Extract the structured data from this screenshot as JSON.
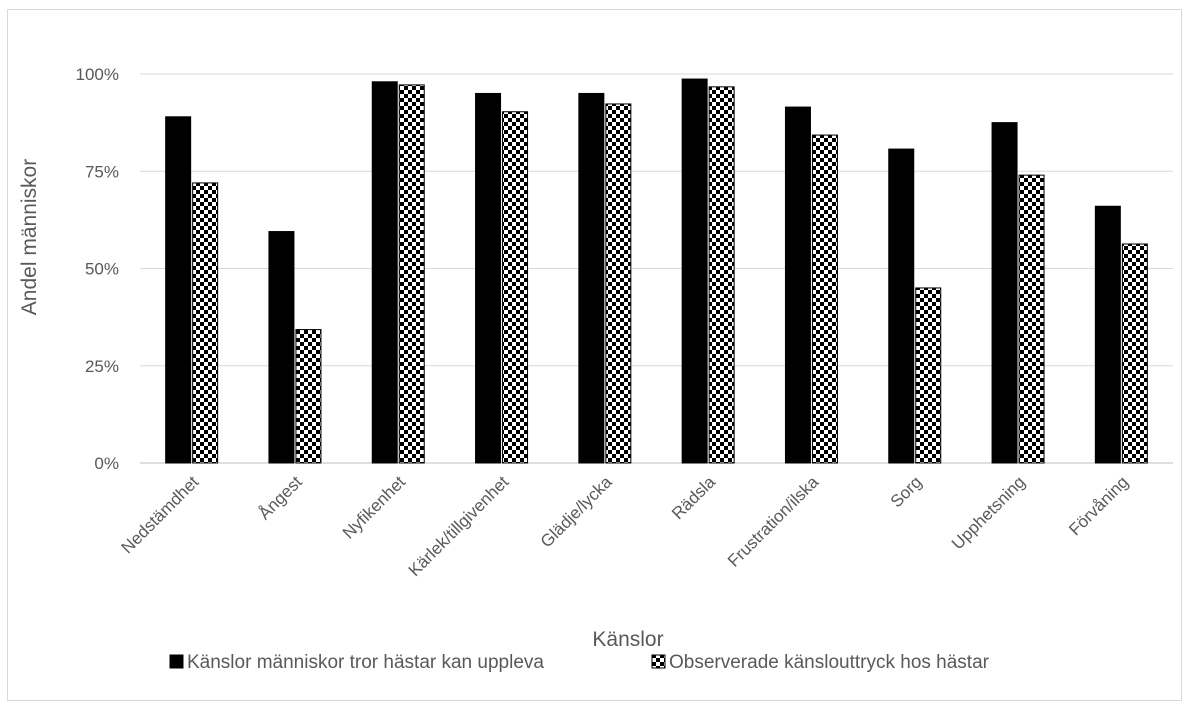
{
  "chart_data": {
    "type": "bar",
    "title": "",
    "xlabel": "Känslor",
    "ylabel": "Andel människor",
    "ylim": [
      0,
      100
    ],
    "yticks": [
      "0%",
      "25%",
      "50%",
      "75%",
      "100%"
    ],
    "ytick_values": [
      0,
      25,
      50,
      75,
      100
    ],
    "grid": true,
    "legend_position": "bottom",
    "categories": [
      "Nedstämdhet",
      "Ångest",
      "Nyfikenhet",
      "Kärlek/tillgivenhet",
      "Glädje/lycka",
      "Rädsla",
      "Frustration/ilska",
      "Sorg",
      "Upphetsning",
      "Förvåning"
    ],
    "series": [
      {
        "name": "Känslor människor tror hästar kan uppleva",
        "fill": "solid",
        "color": "#000000",
        "values": [
          89,
          59.5,
          98,
          95,
          95,
          98.7,
          91.5,
          80.7,
          87.5,
          66
        ]
      },
      {
        "name": "Observerade känslouttryck hos hästar",
        "fill": "checkerboard",
        "color": "#000000",
        "values": [
          72,
          34.3,
          97.2,
          90.3,
          92.3,
          96.7,
          84.3,
          45,
          74,
          56.3
        ]
      }
    ]
  }
}
